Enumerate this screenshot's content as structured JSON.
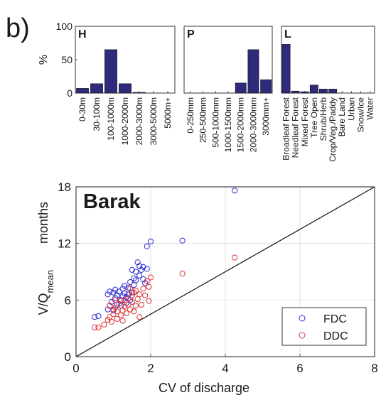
{
  "panel_label": "b)",
  "chart_data": [
    {
      "type": "bar",
      "panel": "H",
      "categories": [
        "0-30m",
        "30-100m",
        "100-1000m",
        "1000-2000m",
        "2000-3000m",
        "3000-5000m",
        "5000m+"
      ],
      "values": [
        7,
        14,
        65,
        14,
        1,
        0,
        0
      ],
      "ylabel": "%",
      "ylim": [
        0,
        100
      ],
      "yticks": [
        0,
        50,
        100
      ],
      "bar_color": "#2e2a7c"
    },
    {
      "type": "bar",
      "panel": "P",
      "categories": [
        "0-250mm",
        "250-500mm",
        "500-1000mm",
        "1000-1500mm",
        "1500-2000mm",
        "2000-3000mm",
        "3000mm+"
      ],
      "values": [
        0,
        0,
        0,
        0,
        15,
        65,
        20
      ],
      "ylim": [
        0,
        100
      ],
      "bar_color": "#2e2a7c"
    },
    {
      "type": "bar",
      "panel": "L",
      "categories": [
        "Broadleaf Forest",
        "Needleaf Forest",
        "Mixed Forest",
        "Tree Open",
        "Shrub/Herb",
        "Crop/Veg./Paddy",
        "Bare Land",
        "Urban",
        "Snow/Ice",
        "Water"
      ],
      "values": [
        73,
        3,
        2,
        12,
        6,
        6,
        0,
        0,
        0,
        0
      ],
      "ylim": [
        0,
        100
      ],
      "bar_color": "#2e2a7c"
    },
    {
      "type": "scatter",
      "title": "Barak",
      "xlabel": "CV of discharge",
      "ylabel_main": "V/Q",
      "ylabel_sub": "mean",
      "ylabel_unit": "months",
      "xlim": [
        0,
        8
      ],
      "ylim": [
        0,
        18
      ],
      "xticks": [
        0,
        2,
        4,
        6,
        8
      ],
      "yticks": [
        0,
        6,
        12,
        18
      ],
      "grid": true,
      "legend_position": "bottom-right",
      "reference_line": "1:1",
      "series": [
        {
          "name": "FDC",
          "color": "#2b2bd6",
          "points": [
            [
              0.5,
              4.2
            ],
            [
              0.6,
              4.3
            ],
            [
              0.85,
              5.0
            ],
            [
              0.9,
              5.4
            ],
            [
              0.95,
              5.8
            ],
            [
              0.85,
              6.6
            ],
            [
              0.9,
              6.9
            ],
            [
              1.0,
              6.8
            ],
            [
              1.05,
              6.2
            ],
            [
              1.05,
              7.1
            ],
            [
              1.1,
              5.5
            ],
            [
              1.15,
              6.9
            ],
            [
              1.2,
              6.0
            ],
            [
              1.25,
              7.2
            ],
            [
              1.3,
              6.7
            ],
            [
              1.3,
              7.5
            ],
            [
              1.35,
              6.3
            ],
            [
              1.4,
              7.3
            ],
            [
              1.45,
              7.9
            ],
            [
              1.5,
              6.8
            ],
            [
              1.55,
              7.6
            ],
            [
              1.6,
              8.1
            ],
            [
              1.6,
              9.0
            ],
            [
              1.65,
              10.0
            ],
            [
              1.7,
              8.6
            ],
            [
              1.7,
              9.6
            ],
            [
              1.75,
              9.2
            ],
            [
              1.8,
              8.2
            ],
            [
              1.8,
              9.5
            ],
            [
              1.85,
              7.8
            ],
            [
              1.9,
              9.3
            ],
            [
              1.45,
              6.0
            ],
            [
              1.35,
              5.7
            ],
            [
              1.2,
              5.4
            ],
            [
              1.0,
              4.9
            ],
            [
              1.25,
              6.4
            ],
            [
              1.55,
              8.3
            ],
            [
              1.4,
              6.6
            ],
            [
              1.1,
              6.5
            ],
            [
              1.5,
              9.2
            ],
            [
              1.9,
              11.7
            ],
            [
              2.0,
              12.2
            ],
            [
              2.85,
              12.3
            ],
            [
              4.25,
              17.6
            ]
          ]
        },
        {
          "name": "DDC",
          "color": "#e03232",
          "points": [
            [
              0.5,
              3.1
            ],
            [
              0.6,
              3.1
            ],
            [
              0.75,
              3.4
            ],
            [
              0.85,
              3.9
            ],
            [
              0.9,
              4.2
            ],
            [
              0.95,
              3.7
            ],
            [
              1.0,
              4.5
            ],
            [
              1.0,
              5.0
            ],
            [
              1.05,
              5.2
            ],
            [
              1.1,
              4.0
            ],
            [
              1.1,
              4.8
            ],
            [
              1.15,
              5.6
            ],
            [
              1.2,
              4.4
            ],
            [
              1.2,
              5.9
            ],
            [
              1.25,
              4.9
            ],
            [
              1.3,
              5.3
            ],
            [
              1.3,
              6.0
            ],
            [
              1.35,
              4.6
            ],
            [
              1.4,
              5.5
            ],
            [
              1.4,
              6.2
            ],
            [
              1.45,
              5.0
            ],
            [
              1.5,
              5.8
            ],
            [
              1.5,
              6.5
            ],
            [
              1.55,
              4.8
            ],
            [
              1.55,
              6.8
            ],
            [
              1.6,
              5.4
            ],
            [
              1.6,
              7.0
            ],
            [
              1.65,
              6.1
            ],
            [
              1.7,
              6.6
            ],
            [
              1.7,
              4.2
            ],
            [
              1.75,
              5.5
            ],
            [
              1.8,
              7.2
            ],
            [
              1.85,
              6.5
            ],
            [
              1.9,
              8.0
            ],
            [
              1.95,
              7.4
            ],
            [
              1.95,
              5.9
            ],
            [
              1.25,
              3.8
            ],
            [
              1.45,
              7.2
            ],
            [
              1.05,
              6.0
            ],
            [
              0.9,
              5.4
            ],
            [
              2.0,
              8.4
            ],
            [
              2.85,
              8.8
            ],
            [
              4.25,
              10.5
            ]
          ]
        }
      ]
    }
  ]
}
